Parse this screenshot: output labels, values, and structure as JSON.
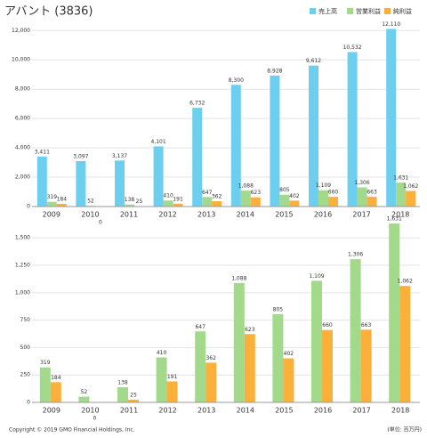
{
  "chart_data": [
    {
      "type": "bar",
      "title": "アバント (3836)",
      "categories": [
        "2009",
        "2010",
        "2011",
        "2012",
        "2013",
        "2014",
        "2015",
        "2016",
        "2017",
        "2018"
      ],
      "series": [
        {
          "name": "売上高",
          "color": "#6dcff0",
          "values": [
            3411,
            3097,
            3137,
            4101,
            6732,
            8300,
            8928,
            9612,
            10532,
            12110
          ],
          "value_labels": [
            "3,411",
            "3,097",
            "3,137",
            "4,101",
            "6,732",
            "8,300",
            "8,928",
            "9,612",
            "10,532",
            "12,110"
          ]
        },
        {
          "name": "営業利益",
          "color": "#a2d98b",
          "values": [
            319,
            52,
            138,
            410,
            647,
            1088,
            805,
            1109,
            1306,
            1631
          ],
          "value_labels": [
            "319",
            "52",
            "138",
            "410",
            "647",
            "1,088",
            "805",
            "1,109",
            "1,306",
            "1,631"
          ]
        },
        {
          "name": "純利益",
          "color": "#fbb03b",
          "values": [
            184,
            0,
            25,
            191,
            362,
            623,
            402,
            660,
            663,
            1062
          ],
          "value_labels": [
            "184",
            "0",
            "25",
            "191",
            "362",
            "623",
            "402",
            "660",
            "663",
            "1,062"
          ]
        }
      ],
      "ylim": [
        0,
        12200
      ],
      "yticks": [
        0,
        {
          "value": 2000,
          "label": "2,000"
        },
        {
          "value": 4000,
          "label": "4,000"
        },
        {
          "value": 6000,
          "label": "6,000"
        },
        {
          "value": 8000,
          "label": "8,000"
        },
        {
          "value": 10000,
          "label": "10,000"
        },
        {
          "value": 12000,
          "label": "12,000"
        }
      ],
      "grid": true,
      "legend": "top-right"
    },
    {
      "type": "bar",
      "categories": [
        "2009",
        "2010",
        "2011",
        "2012",
        "2013",
        "2014",
        "2015",
        "2016",
        "2017",
        "2018"
      ],
      "series": [
        {
          "name": "営業利益",
          "color": "#a2d98b",
          "values": [
            319,
            52,
            138,
            410,
            647,
            1088,
            805,
            1109,
            1306,
            1631
          ],
          "value_labels": [
            "319",
            "52",
            "138",
            "410",
            "647",
            "1,088",
            "805",
            "1,109",
            "1,306",
            "1,631"
          ]
        },
        {
          "name": "純利益",
          "color": "#fbb03b",
          "values": [
            184,
            0,
            25,
            191,
            362,
            623,
            402,
            660,
            663,
            1062
          ],
          "value_labels": [
            "184",
            "0",
            "25",
            "191",
            "362",
            "623",
            "402",
            "660",
            "663",
            "1,062"
          ]
        }
      ],
      "ylim": [
        0,
        1640
      ],
      "yticks": [
        0,
        250,
        500,
        750,
        {
          "value": 1000,
          "label": "1,000"
        },
        {
          "value": 1250,
          "label": "1,250"
        },
        {
          "value": 1500,
          "label": "1,500"
        }
      ],
      "grid": true
    }
  ],
  "footer": {
    "copyright": "Copyright © 2019 GMO Financial Holdings, Inc.",
    "unit": "(単位: 百万円)"
  }
}
